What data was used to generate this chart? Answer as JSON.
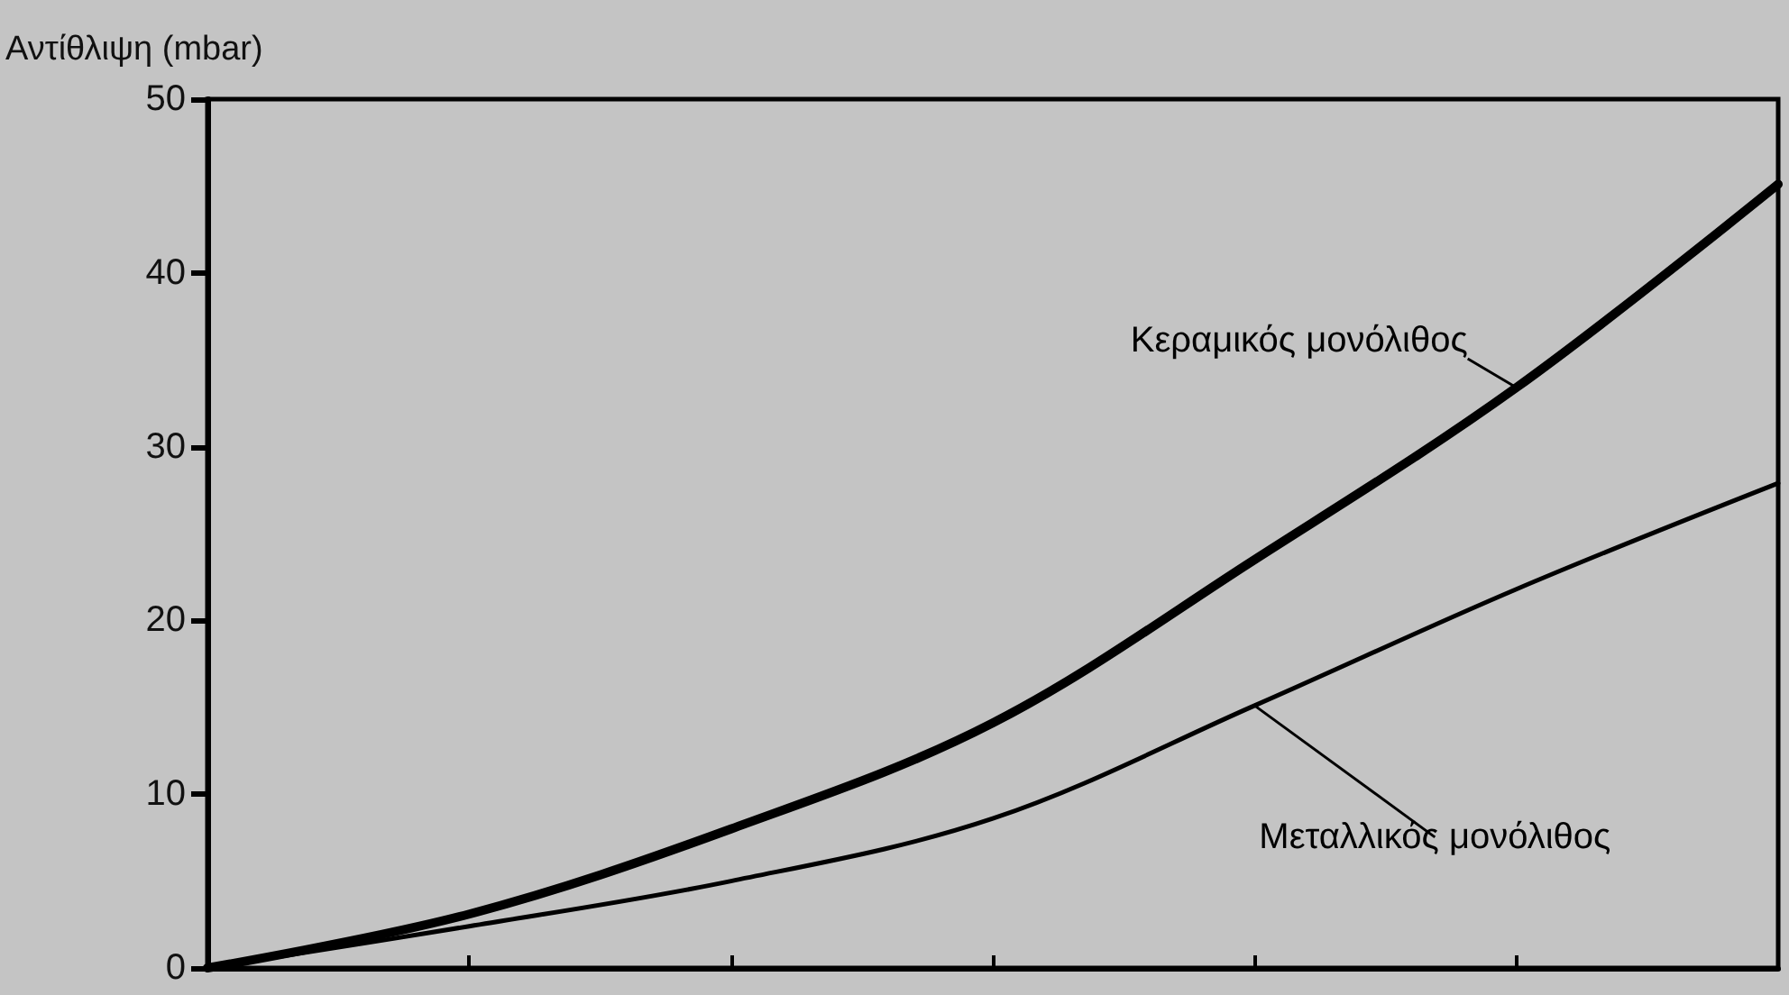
{
  "chart_data": {
    "type": "line",
    "ylabel": "Αντίθλιψη (mbar)",
    "categories": [
      null,
      null,
      null,
      null,
      null,
      null,
      null
    ],
    "series": [
      {
        "name": "Κεραμικός μονόλιθος",
        "color": "#000000",
        "values": [
          0,
          3.1,
          8.0,
          14.1,
          23.5,
          33.4,
          45.1
        ]
      },
      {
        "name": "Μεταλλικός μονόλιθος",
        "color": "#000000",
        "values": [
          0,
          2.4,
          5.0,
          8.6,
          15.1,
          21.8,
          27.9
        ]
      }
    ],
    "ylim": [
      0,
      50
    ],
    "yticks": [
      0,
      10,
      20,
      30,
      40,
      50
    ],
    "grid": false,
    "legend": false,
    "marker": "none",
    "line_style": "solid"
  }
}
